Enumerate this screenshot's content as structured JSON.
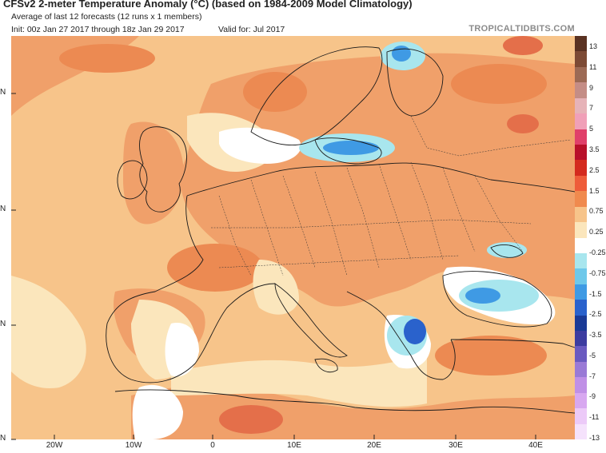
{
  "header": {
    "title": "CFSv2 2-meter Temperature Anomaly (°C) (based on 1984-2009 Model Climatology)",
    "subtitle": "Average of last 12 forecasts (12 runs x 1 members)",
    "init": "Init: 00z Jan 27 2017 through 18z Jan 29 2017",
    "valid": "Valid for: Jul 2017",
    "brand": "TROPICALTIDBITS.COM"
  },
  "axes": {
    "lat_labels": [
      "N",
      "N",
      "N",
      "N"
    ],
    "lon_labels": [
      "20W",
      "10W",
      "0",
      "10E",
      "20E",
      "30E",
      "40E"
    ]
  },
  "colorbar": {
    "labels": [
      "13",
      "11",
      "9",
      "7",
      "5",
      "3.5",
      "2.5",
      "1.5",
      "0.75",
      "0.25",
      "-0.25",
      "-0.75",
      "-1.5",
      "-2.5",
      "-3.5",
      "-5",
      "-7",
      "-9",
      "-11",
      "-13"
    ],
    "colors": [
      "#5a3222",
      "#7c4a35",
      "#9c6a55",
      "#c48d86",
      "#e6b3b8",
      "#f0a0b8",
      "#e0406a",
      "#b8102a",
      "#d42a1e",
      "#ee5c3a",
      "#f08a4e",
      "#f7c48a",
      "#fbe6bc",
      "#ffffff",
      "#a8e6ee",
      "#6ec8ea",
      "#3f9ae4",
      "#2a62cc",
      "#1a3a96",
      "#3c3ca0",
      "#6a5ac0",
      "#9a7ad6",
      "#c090e6",
      "#d8a8f0",
      "#eccaf8",
      "#f5e2fc"
    ]
  },
  "map_colors": {
    "background": "#f7c48a",
    "warm": "#f0a06a",
    "warmer": "#ec8a52",
    "hot": "#e46f4a",
    "near_zero": "#fbe6bc",
    "neutral": "#ffffff",
    "cool": "#a8e6ee",
    "cold": "#3f9ae4",
    "colder": "#2a62cc",
    "land_border": "#1a1a1a",
    "water": "#fde9c8"
  }
}
